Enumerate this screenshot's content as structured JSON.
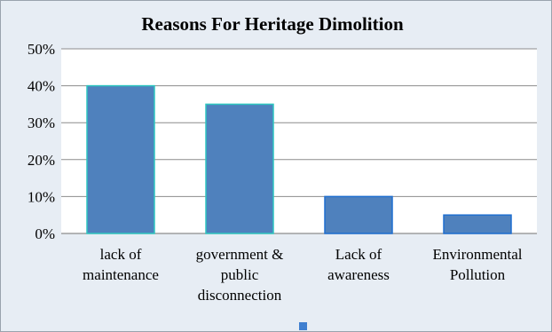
{
  "chart_data": {
    "type": "bar",
    "title": "Reasons For Heritage Dimolition",
    "xlabel": "",
    "ylabel": "",
    "categories": [
      [
        "lack of",
        "maintenance"
      ],
      [
        "government &",
        "public",
        "disconnection"
      ],
      [
        "Lack of",
        "awareness"
      ],
      [
        "Environmental",
        "Pollution"
      ]
    ],
    "series": [
      {
        "values": [
          0.4,
          0.35,
          0.1,
          0.05
        ]
      }
    ],
    "ylim": [
      0,
      0.5
    ],
    "yticks": [
      "0%",
      "10%",
      "20%",
      "30%",
      "40%",
      "50%"
    ],
    "grid": true,
    "legend": "bottom",
    "colors": {
      "bar_fill": "#4f81bd",
      "bar_stroke_highlight": "#2fc6c0",
      "bar_stroke": "#1f6fd0",
      "plot_bg": "#ffffff",
      "frame_bg": "#e7edf4",
      "grid": "#8c8c8c",
      "legend_swatch": "#3f7fd0"
    }
  }
}
